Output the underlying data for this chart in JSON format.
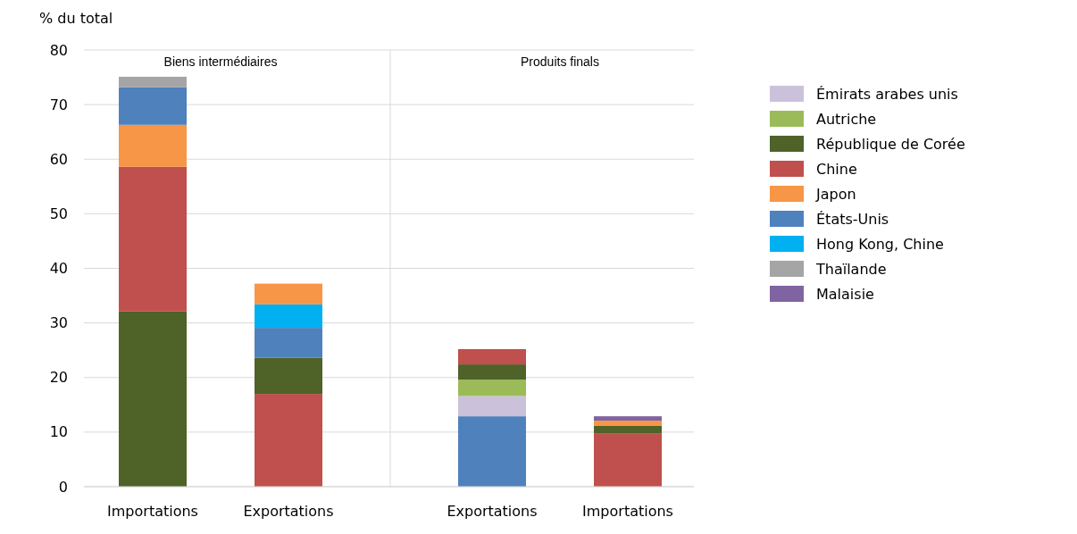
{
  "chart_data": {
    "type": "bar",
    "stacked": true,
    "ylabel": "% du total",
    "categories": [
      "Importations",
      "Exportations",
      "Exportations",
      "Importations"
    ],
    "annotations": [
      "Biens intermédiaires",
      "Produits finals"
    ],
    "ylim": [
      0,
      80
    ],
    "yticks": [
      0,
      10,
      20,
      30,
      40,
      50,
      60,
      70,
      80
    ],
    "grid": "y",
    "legend": "right",
    "series": [
      {
        "color": "#4f81bd",
        "values": [
          null,
          null,
          12.9,
          null
        ]
      },
      {
        "name": "Émirats arabes unis",
        "color": "#ccc1da",
        "values": [
          null,
          null,
          3.7,
          null
        ]
      },
      {
        "name": "Autriche",
        "color": "#9bbb59",
        "values": [
          null,
          null,
          3.0,
          null
        ]
      },
      {
        "color": "#c0504d",
        "values": [
          null,
          17.0,
          null,
          9.7
        ]
      },
      {
        "name": "République de Corée",
        "color": "#4f6228",
        "values": [
          32.1,
          6.6,
          2.8,
          1.5
        ]
      },
      {
        "name": "Chine",
        "color": "#c0504d",
        "values": [
          26.5,
          null,
          2.8,
          null
        ]
      },
      {
        "name": "Japon",
        "color": "#f79646",
        "values": [
          7.7,
          null,
          null,
          0.9
        ]
      },
      {
        "name": "États-Unis",
        "color": "#4f81bd",
        "values": [
          6.9,
          5.5,
          null,
          null
        ]
      },
      {
        "name": "Hong Kong, Chine",
        "color": "#00b0f0",
        "values": [
          null,
          4.3,
          null,
          null
        ]
      },
      {
        "color": "#f79646",
        "values": [
          null,
          3.8,
          null,
          null
        ]
      },
      {
        "name": "Thaïlande",
        "color": "#a5a5a5",
        "values": [
          1.9,
          null,
          null,
          null
        ]
      },
      {
        "name": "Malaisie",
        "color": "#8064a2",
        "values": [
          null,
          null,
          null,
          0.8
        ]
      }
    ]
  }
}
